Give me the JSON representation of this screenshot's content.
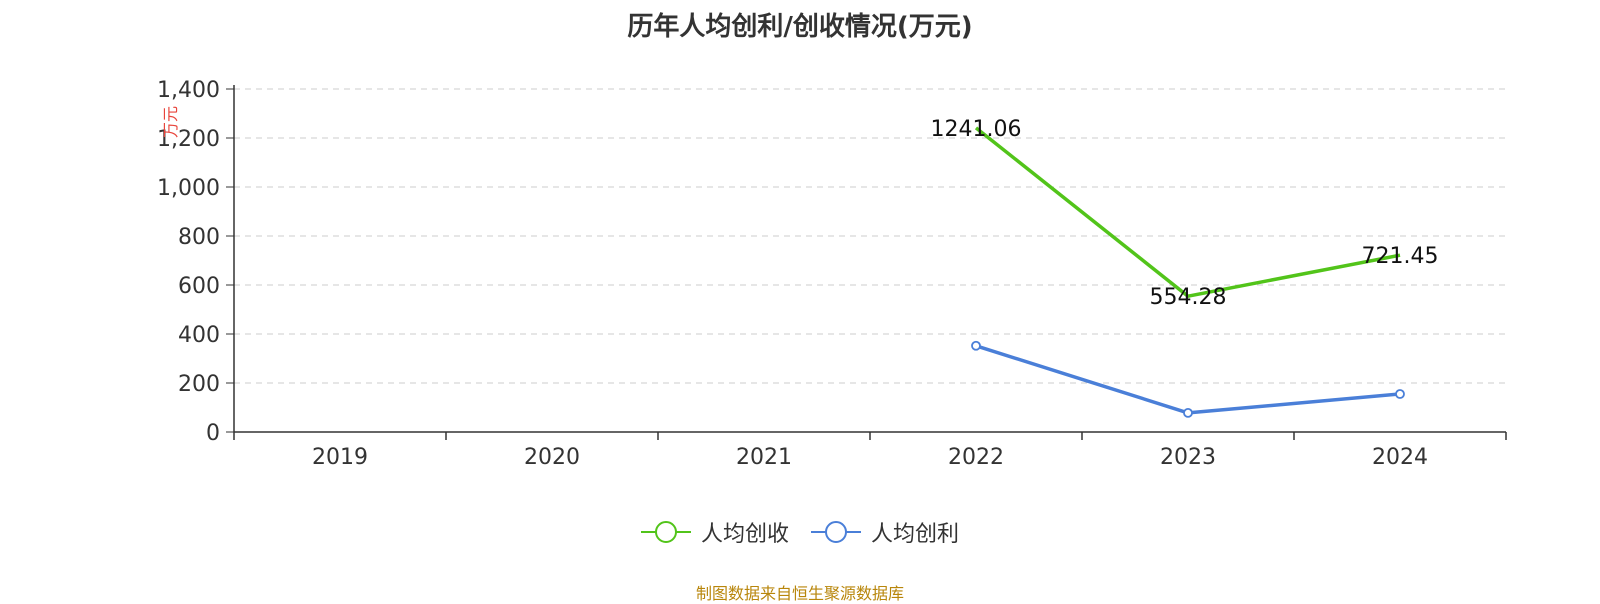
{
  "chart_data": {
    "type": "line",
    "title": "历年人均创利/创收情况(万元)",
    "ylabel": "万元",
    "categories": [
      "2019",
      "2020",
      "2021",
      "2022",
      "2023",
      "2024"
    ],
    "ylim": [
      0,
      1400
    ],
    "yticks": [
      0,
      200,
      400,
      600,
      800,
      1000,
      1200,
      1400
    ],
    "ytick_labels": [
      "0",
      "200",
      "400",
      "600",
      "800",
      "1,000",
      "1,200",
      "1,400"
    ],
    "grid": true,
    "legend_position": "bottom",
    "series": [
      {
        "name": "人均创收",
        "color": "#52c41a",
        "values": [
          null,
          null,
          null,
          1241.06,
          554.28,
          721.45
        ],
        "data_labels": [
          "",
          "",
          "",
          "1241.06",
          "554.28",
          "721.45"
        ],
        "show_markers": false
      },
      {
        "name": "人均创利",
        "color": "#4a7fd8",
        "values": [
          null,
          null,
          null,
          352,
          78,
          155
        ],
        "data_labels": [
          "",
          "",
          "",
          "",
          "",
          ""
        ],
        "show_markers": true
      }
    ]
  },
  "footer": {
    "source": "制图数据来自恒生聚源数据库"
  }
}
